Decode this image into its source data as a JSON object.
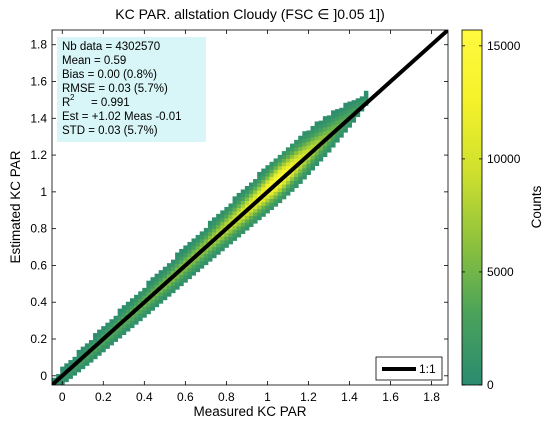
{
  "chart_data": {
    "type": "heatmap",
    "title": "KC PAR. allstation  Cloudy (FSC ∈ ]0.05 1])",
    "xlabel": "Measured KC PAR",
    "ylabel": "Estimated KC PAR",
    "xlim": [
      -0.05,
      1.88
    ],
    "ylim": [
      -0.05,
      1.88
    ],
    "x_ticks": [
      0,
      0.2,
      0.4,
      0.6,
      0.8,
      1,
      1.2,
      1.4,
      1.6,
      1.8
    ],
    "y_ticks": [
      0,
      0.2,
      0.4,
      0.6,
      0.8,
      1,
      1.2,
      1.4,
      1.6,
      1.8
    ],
    "x_tick_labels": [
      "0",
      "0.2",
      "0.4",
      "0.6",
      "0.8",
      "1",
      "1.2",
      "1.4",
      "1.6",
      "1.8"
    ],
    "y_tick_labels": [
      "0",
      "0.2",
      "0.4",
      "0.6",
      "0.8",
      "1",
      "1.2",
      "1.4",
      "1.6",
      "1.8"
    ],
    "grid": false,
    "colorbar": {
      "label": "Counts",
      "range": [
        0,
        15700
      ],
      "ticks": [
        0,
        5000,
        10000,
        15000
      ],
      "tick_labels": [
        "0",
        "5000",
        "10000",
        "15000"
      ],
      "colors": [
        "#2a8b70",
        "#4aa35a",
        "#8ec23d",
        "#cfe02e",
        "#f4f22a",
        "#fffa3f"
      ]
    },
    "density_profile": {
      "x": [
        0.0,
        0.15,
        0.4,
        0.7,
        0.95,
        1.05,
        1.15,
        1.3,
        1.42,
        1.48
      ],
      "half_width": [
        0.04,
        0.06,
        0.08,
        0.1,
        0.12,
        0.13,
        0.13,
        0.1,
        0.06,
        0.03
      ],
      "peak_counts": [
        1500,
        3000,
        5000,
        7000,
        12000,
        15500,
        11000,
        5500,
        2500,
        1200
      ]
    },
    "reference_line": {
      "name": "1:1",
      "x": [
        -0.05,
        1.88
      ],
      "y": [
        -0.05,
        1.88
      ],
      "color": "#000000"
    },
    "legend": {
      "position": "bottom-right",
      "entries": [
        "1:1"
      ]
    },
    "stats_box": {
      "position": "top-left",
      "background": "#d8f6f7",
      "lines": [
        "Nb data  = 4302570",
        "Mean  = 0.59",
        "Bias   = 0.00 (0.8%)",
        "RMSE  = 0.03  (5.7%)",
        "R",
        "Est  = +1.02 Meas -0.01",
        "STD     = 0.03 (5.7%)"
      ],
      "r2_superscript": "2",
      "r2_value": "= 0.991"
    }
  }
}
